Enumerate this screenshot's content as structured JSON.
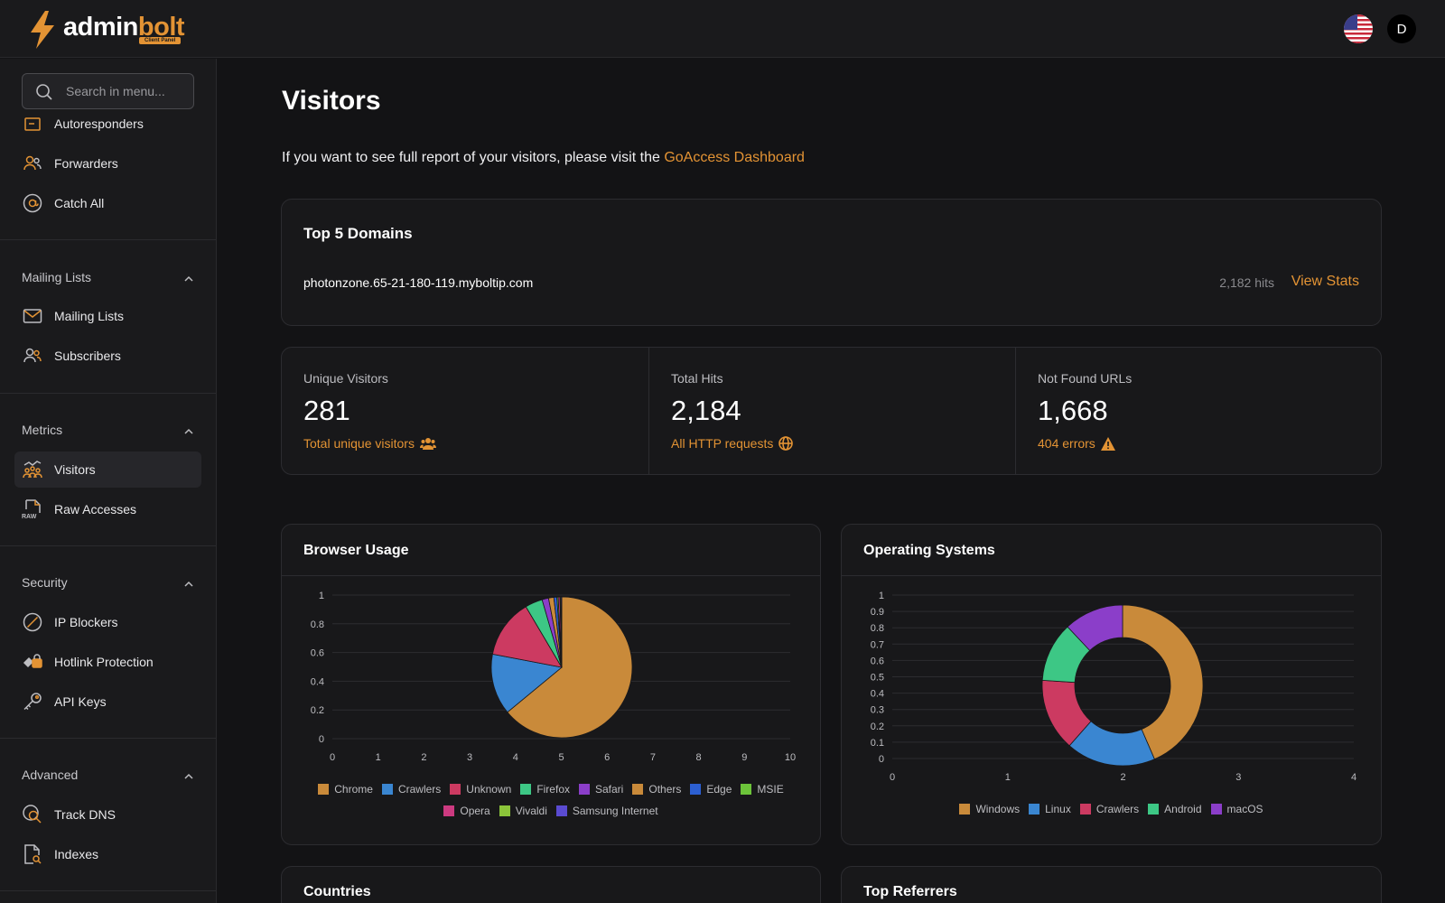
{
  "header": {
    "logo_text_white": "admin",
    "logo_text_orange": "bolt",
    "logo_badge": "Client Panel",
    "avatar_initial": "D"
  },
  "sidebar": {
    "search_placeholder": "Search in menu...",
    "items_top": [
      {
        "label": "Autoresponders",
        "icon": "autoresponder-icon"
      },
      {
        "label": "Forwarders",
        "icon": "users-icon"
      },
      {
        "label": "Catch All",
        "icon": "at-icon"
      }
    ],
    "sections": [
      {
        "title": "Mailing Lists",
        "items": [
          {
            "label": "Mailing Lists",
            "icon": "envelope-icon"
          },
          {
            "label": "Subscribers",
            "icon": "users-icon"
          }
        ]
      },
      {
        "title": "Metrics",
        "items": [
          {
            "label": "Visitors",
            "icon": "visitors-icon",
            "active": true
          },
          {
            "label": "Raw Accesses",
            "icon": "raw-file-icon"
          }
        ]
      },
      {
        "title": "Security",
        "items": [
          {
            "label": "IP Blockers",
            "icon": "block-icon"
          },
          {
            "label": "Hotlink Protection",
            "icon": "hotlink-icon"
          },
          {
            "label": "API Keys",
            "icon": "key-icon"
          }
        ]
      },
      {
        "title": "Advanced",
        "items": [
          {
            "label": "Track DNS",
            "icon": "track-dns-icon"
          },
          {
            "label": "Indexes",
            "icon": "file-search-icon"
          }
        ]
      }
    ]
  },
  "main": {
    "title": "Visitors",
    "intro_text": "If you want to see full report of your visitors, please visit the ",
    "intro_link": "GoAccess Dashboard",
    "top_domains": {
      "title": "Top 5 Domains",
      "domains": [
        {
          "name": "photonzone.65-21-180-119.myboltip.com",
          "hits": "2,182 hits",
          "action": "View Stats"
        }
      ]
    },
    "stats": [
      {
        "label": "Unique Visitors",
        "value": "281",
        "link": "Total unique visitors",
        "icon": "users-icon"
      },
      {
        "label": "Total Hits",
        "value": "2,184",
        "link": "All HTTP requests",
        "icon": "globe-icon"
      },
      {
        "label": "Not Found URLs",
        "value": "1,668",
        "link": "404 errors",
        "icon": "warning-icon"
      }
    ],
    "bottom_cards": [
      "Countries",
      "Top Referrers"
    ]
  },
  "colors": {
    "accent": "#e39334",
    "chrome": "#c98a3a",
    "crawlers_blue": "#3a86d1",
    "unknown": "#cc3a61",
    "firefox": "#3dc785",
    "safari": "#8b3ec9",
    "others": "#c98a3a",
    "edge": "#2c5fd1",
    "msie": "#6cc43a",
    "opera": "#cc3a80",
    "vivaldi": "#8bc43a",
    "samsung": "#5a4bd1"
  },
  "chart_data": [
    {
      "type": "pie",
      "title": "Browser Usage",
      "x_ticks": [
        "0",
        "1",
        "2",
        "3",
        "4",
        "5",
        "6",
        "7",
        "8",
        "9",
        "10"
      ],
      "y_ticks": [
        "0",
        "0.2",
        "0.4",
        "0.6",
        "0.8",
        "1"
      ],
      "legend_position": "bottom",
      "categories": [
        "Chrome",
        "Crawlers",
        "Unknown",
        "Firefox",
        "Safari",
        "Others",
        "Edge",
        "MSIE",
        "Opera",
        "Vivaldi",
        "Samsung Internet"
      ],
      "values": [
        64.0,
        14.0,
        13.5,
        4.0,
        1.5,
        1.2,
        0.7,
        0.3,
        0.4,
        0.2,
        0.2
      ],
      "colors": [
        "#c98a3a",
        "#3a86d1",
        "#cc3a61",
        "#3dc785",
        "#8b3ec9",
        "#c98a3a",
        "#2c5fd1",
        "#6cc43a",
        "#cc3a80",
        "#8bc43a",
        "#5a4bd1"
      ]
    },
    {
      "type": "pie",
      "donut": true,
      "title": "Operating Systems",
      "x_ticks": [
        "0",
        "1",
        "2",
        "3",
        "4"
      ],
      "y_ticks": [
        "0",
        "0.1",
        "0.2",
        "0.3",
        "0.4",
        "0.5",
        "0.6",
        "0.7",
        "0.8",
        "0.9",
        "1"
      ],
      "legend_position": "bottom",
      "categories": [
        "Windows",
        "Linux",
        "Crawlers",
        "Android",
        "macOS"
      ],
      "values": [
        43.5,
        18.0,
        14.5,
        12.0,
        12.0
      ],
      "colors": [
        "#c98a3a",
        "#3a86d1",
        "#cc3a61",
        "#3dc785",
        "#8b3ec9"
      ]
    }
  ]
}
